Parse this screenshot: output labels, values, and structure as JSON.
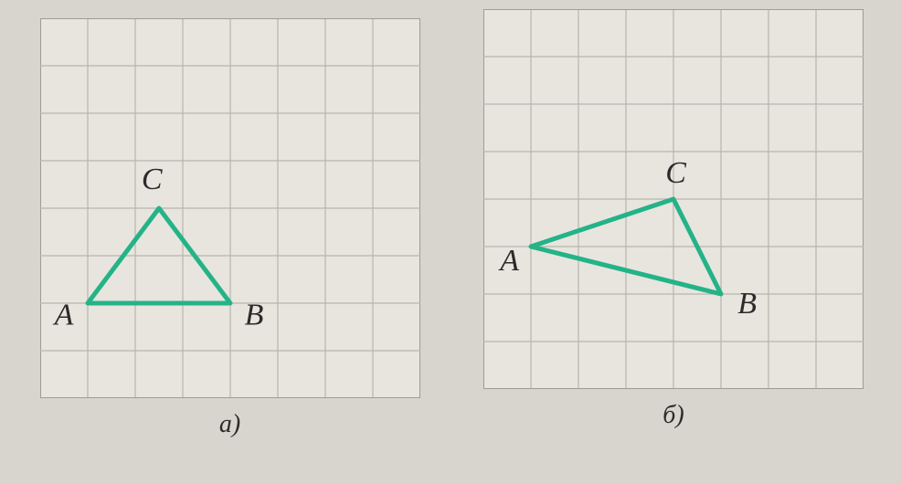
{
  "global": {
    "page_bg": "#d8d4ce",
    "grid_bg": "#e8e5df",
    "grid_line": "#b8b4ae",
    "grid_border": "#a09b94",
    "triangle_stroke": "#24b387",
    "label_color": "#2b2b2b",
    "label_fontsize": 34,
    "caption_fontsize": 28,
    "triangle_stroke_width": 5
  },
  "figure_a": {
    "caption": "а)",
    "grid": {
      "cols": 8,
      "rows": 8,
      "cell": 52
    },
    "triangle": {
      "A": {
        "gx": 1.0,
        "gy": 6.0
      },
      "B": {
        "gx": 4.0,
        "gy": 6.0
      },
      "C": {
        "gx": 2.5,
        "gy": 4.0
      }
    },
    "labels": {
      "A": {
        "text": "A",
        "gx": 0.5,
        "gy": 6.45,
        "anchor": "middle"
      },
      "B": {
        "text": "B",
        "gx": 4.5,
        "gy": 6.45,
        "anchor": "middle"
      },
      "C": {
        "text": "C",
        "gx": 2.35,
        "gy": 3.6,
        "anchor": "middle"
      }
    }
  },
  "figure_b": {
    "caption": "б)",
    "grid": {
      "cols": 8,
      "rows": 8,
      "cell": 52
    },
    "triangle": {
      "A": {
        "gx": 1.0,
        "gy": 5.0
      },
      "B": {
        "gx": 5.0,
        "gy": 6.0
      },
      "C": {
        "gx": 4.0,
        "gy": 4.0
      }
    },
    "labels": {
      "A": {
        "text": "A",
        "gx": 0.55,
        "gy": 5.5,
        "anchor": "middle"
      },
      "B": {
        "text": "B",
        "gx": 5.55,
        "gy": 6.4,
        "anchor": "middle"
      },
      "C": {
        "text": "C",
        "gx": 4.05,
        "gy": 3.65,
        "anchor": "middle"
      }
    }
  }
}
